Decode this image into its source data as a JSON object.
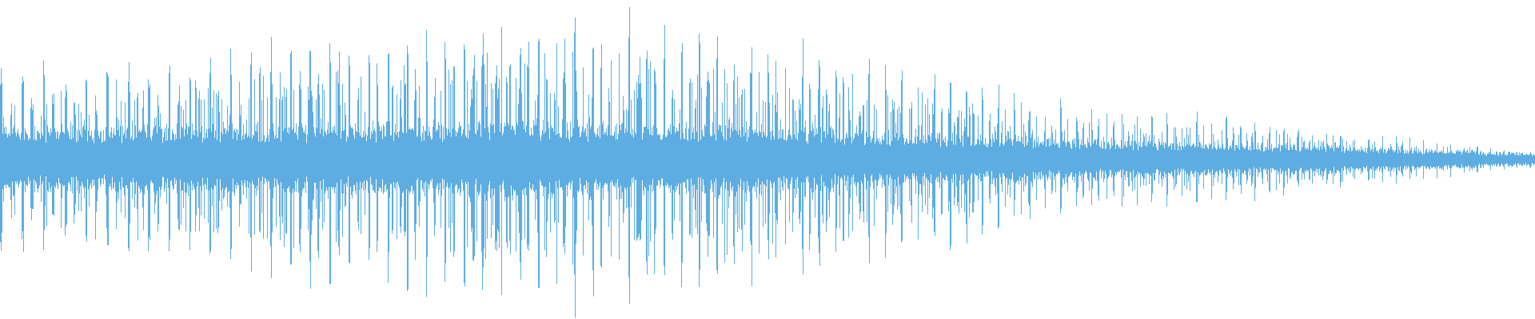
{
  "waveform": {
    "color": "#5dade2",
    "background": "#ffffff",
    "peak_envelope": [
      0.55,
      0.6,
      0.75,
      0.85,
      0.9,
      0.75,
      0.55,
      0.35,
      0.25,
      0.15,
      0.05
    ],
    "core_envelope": [
      0.15,
      0.16,
      0.17,
      0.18,
      0.18,
      0.16,
      0.13,
      0.1,
      0.08,
      0.06,
      0.03
    ]
  }
}
